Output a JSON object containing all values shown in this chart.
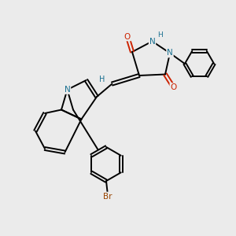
{
  "background_color": "#ebebeb",
  "bond_color": "black",
  "atom_colors": {
    "N": "#1a7090",
    "O": "#cc2200",
    "Br": "#994400",
    "H": "#1a7090",
    "C": "black"
  },
  "figsize": [
    3.0,
    3.0
  ],
  "dpi": 100,
  "lw": 1.4,
  "fs": 7.5
}
